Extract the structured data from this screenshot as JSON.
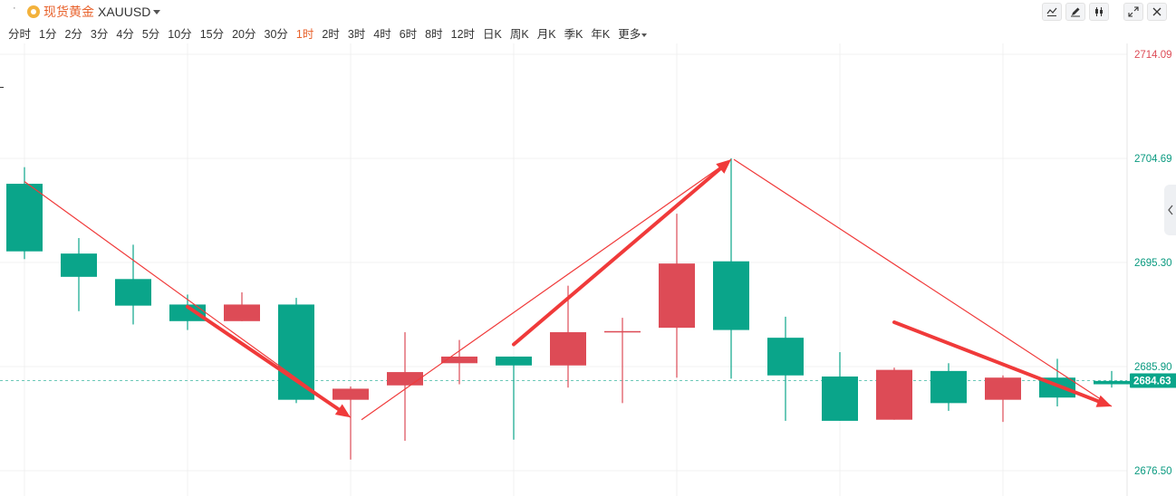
{
  "header": {
    "symbol_name": "现货黄金",
    "symbol_code": "XAUUSD",
    "tools": [
      "indicator-icon",
      "draw-icon",
      "candle-style-icon",
      "fullscreen-icon",
      "close-icon"
    ]
  },
  "intervals": [
    {
      "label": "分时"
    },
    {
      "label": "1分"
    },
    {
      "label": "2分"
    },
    {
      "label": "3分"
    },
    {
      "label": "4分"
    },
    {
      "label": "5分"
    },
    {
      "label": "10分"
    },
    {
      "label": "15分"
    },
    {
      "label": "20分"
    },
    {
      "label": "30分"
    },
    {
      "label": "1时",
      "active": true
    },
    {
      "label": "2时"
    },
    {
      "label": "3时"
    },
    {
      "label": "4时"
    },
    {
      "label": "6时"
    },
    {
      "label": "8时"
    },
    {
      "label": "12时"
    },
    {
      "label": "日K"
    },
    {
      "label": "周K"
    },
    {
      "label": "月K"
    },
    {
      "label": "季K"
    },
    {
      "label": "年K"
    },
    {
      "label": "更多"
    }
  ],
  "colors": {
    "up": "#dd4b56",
    "down": "#0aa58a",
    "grid": "#f0f0f0",
    "arrow": "#f03a3a",
    "top_label": "#dd4b56",
    "price_tag": "#0aa58a"
  },
  "chart_data": {
    "type": "candlestick",
    "ylim": [
      2676.5,
      2714.09
    ],
    "y_ticks": [
      "2714.09",
      "2704.69",
      "2695.30",
      "2685.90",
      "2676.50"
    ],
    "last_price": "2684.63",
    "candles": [
      {
        "open": 2702.4,
        "high": 2703.9,
        "low": 2695.6,
        "close": 2696.3
      },
      {
        "open": 2696.1,
        "high": 2697.5,
        "low": 2690.9,
        "close": 2694.0
      },
      {
        "open": 2693.8,
        "high": 2696.9,
        "low": 2689.7,
        "close": 2691.4
      },
      {
        "open": 2691.5,
        "high": 2692.4,
        "low": 2689.2,
        "close": 2690.0
      },
      {
        "open": 2690.0,
        "high": 2692.6,
        "low": 2690.0,
        "close": 2691.5
      },
      {
        "open": 2691.5,
        "high": 2692.1,
        "low": 2682.6,
        "close": 2682.9
      },
      {
        "open": 2682.9,
        "high": 2684.1,
        "low": 2677.5,
        "close": 2683.9
      },
      {
        "open": 2684.2,
        "high": 2689.0,
        "low": 2679.2,
        "close": 2685.4
      },
      {
        "open": 2686.2,
        "high": 2688.3,
        "low": 2684.3,
        "close": 2686.8
      },
      {
        "open": 2686.8,
        "high": 2686.8,
        "low": 2679.3,
        "close": 2686.0
      },
      {
        "open": 2686.0,
        "high": 2693.2,
        "low": 2684.0,
        "close": 2689.0
      },
      {
        "open": 2689.1,
        "high": 2690.3,
        "low": 2682.6,
        "close": 2689.1
      },
      {
        "open": 2689.4,
        "high": 2699.7,
        "low": 2684.9,
        "close": 2695.2
      },
      {
        "open": 2695.4,
        "high": 2704.7,
        "low": 2684.8,
        "close": 2689.2
      },
      {
        "open": 2688.5,
        "high": 2690.4,
        "low": 2681.0,
        "close": 2685.1
      },
      {
        "open": 2685.0,
        "high": 2687.2,
        "low": 2681.0,
        "close": 2681.0
      },
      {
        "open": 2681.1,
        "high": 2685.8,
        "low": 2681.1,
        "close": 2685.6
      },
      {
        "open": 2685.5,
        "high": 2686.2,
        "low": 2681.9,
        "close": 2682.6
      },
      {
        "open": 2682.9,
        "high": 2685.1,
        "low": 2680.9,
        "close": 2684.9
      },
      {
        "open": 2684.9,
        "high": 2686.6,
        "low": 2682.3,
        "close": 2683.1
      },
      {
        "open": 2684.6,
        "high": 2685.5,
        "low": 2684.0,
        "close": 2684.3
      }
    ],
    "annotations": [
      {
        "type": "line",
        "from": [
          0,
          2702.6
        ],
        "to": [
          6,
          2681.3
        ],
        "style": "thin"
      },
      {
        "type": "arrow",
        "from": [
          3,
          2691.3
        ],
        "to": [
          6,
          2681.3
        ],
        "style": "thick"
      },
      {
        "type": "line",
        "from": [
          6.2,
          2681.1
        ],
        "to": [
          13,
          2704.6
        ],
        "style": "thin"
      },
      {
        "type": "arrow",
        "from": [
          9,
          2687.9
        ],
        "to": [
          13,
          2704.6
        ],
        "style": "thick"
      },
      {
        "type": "line",
        "from": [
          13.05,
          2704.6
        ],
        "to": [
          20,
          2682.3
        ],
        "style": "thin"
      },
      {
        "type": "arrow",
        "from": [
          16,
          2689.9
        ],
        "to": [
          20,
          2682.3
        ],
        "style": "thick"
      }
    ]
  }
}
